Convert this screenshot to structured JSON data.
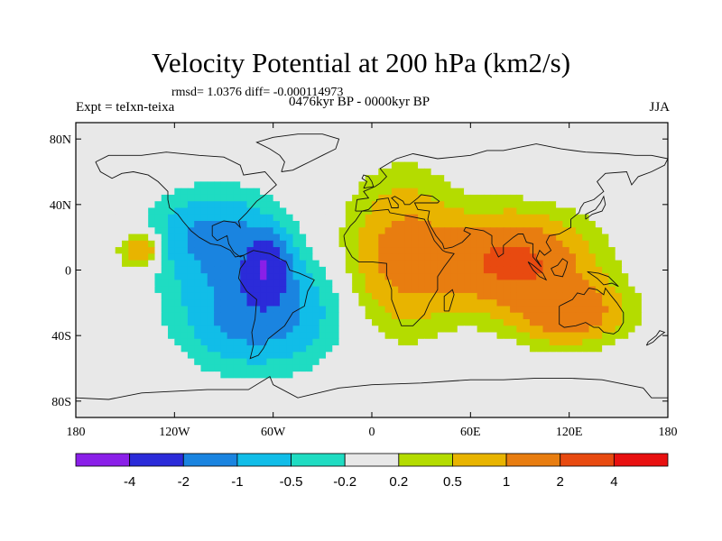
{
  "chart_data": {
    "type": "heatmap",
    "title": "Velocity Potential at 200 hPa (km2/s)",
    "stats_label": "rmsd= 1.0376 diff= -0.000114973",
    "experiment_label": "Expt = teIxn-teixa",
    "period_label": "0476kyr BP - 0000kyr BP",
    "season_label": "JJA",
    "x_ticks": [
      {
        "lon": -180,
        "label": "180"
      },
      {
        "lon": -120,
        "label": "120W"
      },
      {
        "lon": -60,
        "label": "60W"
      },
      {
        "lon": 0,
        "label": "0"
      },
      {
        "lon": 60,
        "label": "60E"
      },
      {
        "lon": 120,
        "label": "120E"
      },
      {
        "lon": 180,
        "label": "180"
      }
    ],
    "y_ticks": [
      {
        "lat": 80,
        "label": "80N"
      },
      {
        "lat": 40,
        "label": "40N"
      },
      {
        "lat": 0,
        "label": "0"
      },
      {
        "lat": -40,
        "label": "40S"
      },
      {
        "lat": -80,
        "label": "80S"
      }
    ],
    "lon_range": [
      -180,
      180
    ],
    "lat_range": [
      -90,
      90
    ],
    "colorbar": {
      "labels": [
        "-4",
        "-2",
        "-1",
        "-0.5",
        "-0.2",
        "0.2",
        "0.5",
        "1",
        "2",
        "4"
      ],
      "colors": [
        "#8a1fe8",
        "#2b2bd9",
        "#1a84e0",
        "#11bde8",
        "#1fdcc2",
        "#e8e8e8",
        "#b4dc00",
        "#e8b400",
        "#e87d10",
        "#e84a10",
        "#e81010"
      ]
    },
    "field_features": [
      {
        "name": "central-america-low",
        "lon": -65,
        "lat": 0,
        "value": -3.2,
        "spread_lon": 12,
        "spread_lat": 18
      },
      {
        "name": "south-pacific-low",
        "lon": -70,
        "lat": -25,
        "value": -1.5,
        "spread_lon": 40,
        "spread_lat": 30
      },
      {
        "name": "north-pacific-low",
        "lon": -95,
        "lat": 20,
        "value": -1.2,
        "spread_lon": 35,
        "spread_lat": 25
      },
      {
        "name": "south-asia-high",
        "lon": 85,
        "lat": 5,
        "value": 2.3,
        "spread_lon": 40,
        "spread_lat": 25
      },
      {
        "name": "maritime-high",
        "lon": 120,
        "lat": -25,
        "value": 1.6,
        "spread_lon": 30,
        "spread_lat": 18
      },
      {
        "name": "africa-high",
        "lon": 20,
        "lat": 10,
        "value": 1.3,
        "spread_lon": 30,
        "spread_lat": 40
      },
      {
        "name": "east-pacific-high",
        "lon": -140,
        "lat": 12,
        "value": 1.1,
        "spread_lon": 12,
        "spread_lat": 10
      }
    ]
  }
}
